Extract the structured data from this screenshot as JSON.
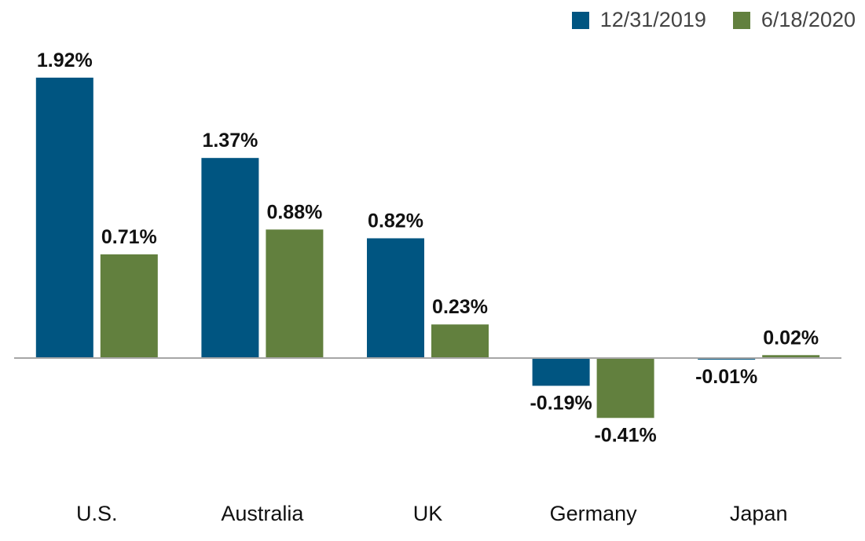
{
  "chart_data": {
    "type": "bar",
    "categories": [
      "U.S.",
      "Australia",
      "UK",
      "Germany",
      "Japan"
    ],
    "series": [
      {
        "name": "12/31/2019",
        "color": "#005581",
        "values": [
          1.92,
          1.37,
          0.82,
          -0.19,
          -0.01
        ],
        "labels": [
          "1.92%",
          "1.37%",
          "0.82%",
          "-0.19%",
          "-0.01%"
        ]
      },
      {
        "name": "6/18/2020",
        "color": "#62803e",
        "values": [
          0.71,
          0.88,
          0.23,
          -0.41,
          0.02
        ],
        "labels": [
          "0.71%",
          "0.88%",
          "0.23%",
          "-0.41%",
          "0.02%"
        ]
      }
    ],
    "title": "",
    "xlabel": "",
    "ylabel": "",
    "ylim": [
      -0.7,
      2.1
    ],
    "grid": false,
    "legend": "top-right",
    "baseline_color": "#a6a6a6"
  }
}
